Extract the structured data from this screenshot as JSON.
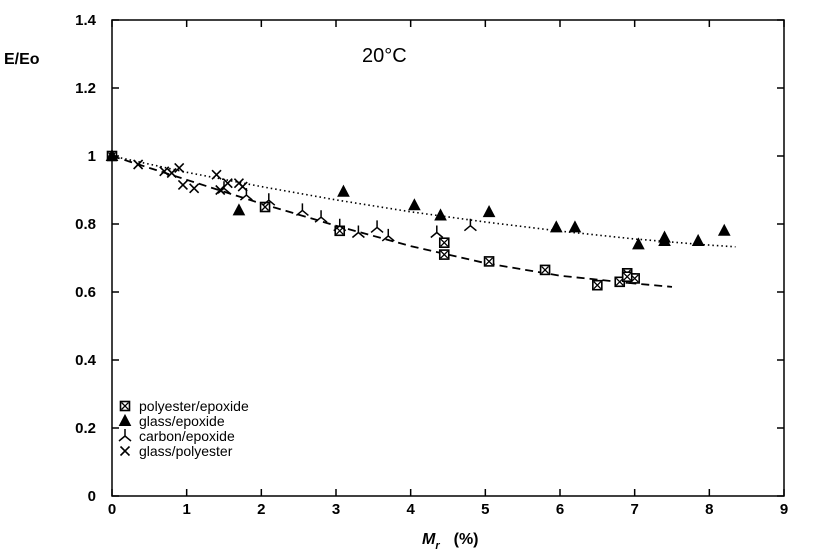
{
  "chart_data": {
    "type": "scatter",
    "title": "",
    "annotation": "20°C",
    "ylabel": "E/Eo",
    "xlabel_main": "M",
    "xlabel_sub": "r",
    "xlabel_unit": "(%)",
    "xlim": [
      0,
      9
    ],
    "ylim": [
      0,
      1.4
    ],
    "x_ticks": [
      0,
      1,
      2,
      3,
      4,
      5,
      6,
      7,
      8,
      9
    ],
    "y_ticks": [
      0,
      0.2,
      0.4,
      0.6,
      0.8,
      1,
      1.2,
      1.4
    ],
    "x_tick_labels": [
      "0",
      "1",
      "2",
      "3",
      "4",
      "5",
      "6",
      "7",
      "8",
      "9"
    ],
    "y_tick_labels": [
      "0",
      "0.2",
      "0.4",
      "0.6",
      "0.8",
      "1",
      "1.2",
      "1.4"
    ],
    "grid": false,
    "legend_position": "bottom-left",
    "series": [
      {
        "name": "polyester/epoxide",
        "marker": "boxed-x",
        "x": [
          0,
          2.05,
          3.05,
          4.45,
          4.45,
          5.05,
          5.8,
          6.5,
          6.8,
          6.9,
          6.95,
          7.0,
          6.9
        ],
        "y": [
          1.0,
          0.85,
          0.78,
          0.745,
          0.71,
          0.69,
          0.665,
          0.62,
          0.63,
          0.655,
          0.64,
          0.64,
          0.645
        ]
      },
      {
        "name": "glass/epoxide",
        "marker": "triangle",
        "x": [
          0,
          1.7,
          3.1,
          4.05,
          4.4,
          5.05,
          5.95,
          6.2,
          7.05,
          7.4,
          7.4,
          7.85,
          8.2
        ],
        "y": [
          1.0,
          0.84,
          0.895,
          0.855,
          0.825,
          0.835,
          0.79,
          0.79,
          0.74,
          0.76,
          0.75,
          0.75,
          0.78
        ]
      },
      {
        "name": "carbon/epoxide",
        "marker": "tri-branch",
        "x": [
          1.5,
          1.8,
          2.1,
          2.55,
          2.8,
          3.05,
          3.3,
          3.55,
          3.7,
          4.35,
          4.8
        ],
        "y": [
          0.905,
          0.885,
          0.87,
          0.84,
          0.82,
          0.795,
          0.775,
          0.79,
          0.765,
          0.775,
          0.795
        ]
      },
      {
        "name": "glass/polyester",
        "marker": "x",
        "x": [
          0.35,
          0.7,
          0.8,
          0.9,
          0.95,
          1.1,
          1.4,
          1.45,
          1.55,
          1.7,
          1.75
        ],
        "y": [
          0.975,
          0.955,
          0.95,
          0.965,
          0.915,
          0.905,
          0.945,
          0.9,
          0.92,
          0.92,
          0.91
        ]
      }
    ],
    "fit_lines": [
      {
        "style": "dotted",
        "x": [
          0,
          1,
          2,
          3,
          4,
          5,
          6,
          7,
          8,
          8.35
        ],
        "y": [
          1.0,
          0.952,
          0.91,
          0.871,
          0.836,
          0.806,
          0.779,
          0.756,
          0.738,
          0.733
        ]
      },
      {
        "style": "dashed",
        "x": [
          0,
          1,
          2,
          3,
          4,
          5,
          6,
          7,
          7.5
        ],
        "y": [
          1.0,
          0.93,
          0.86,
          0.795,
          0.735,
          0.685,
          0.648,
          0.625,
          0.615
        ]
      }
    ]
  }
}
